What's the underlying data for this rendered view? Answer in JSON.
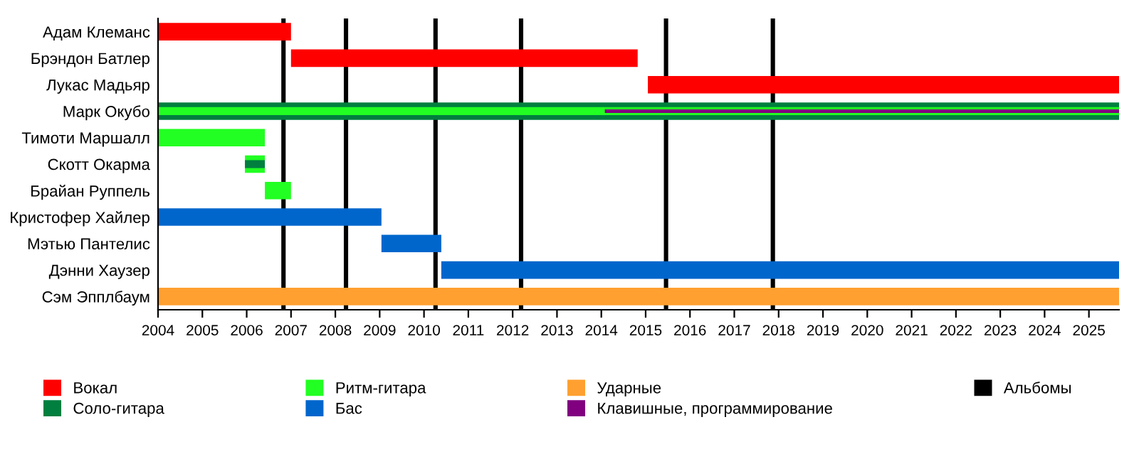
{
  "chart_data": {
    "type": "bar",
    "orientation": "horizontal",
    "categories": [
      "Адам Клеманс",
      "Брэндон Батлер",
      "Лукас Мадьяр",
      "Марк Окубо",
      "Тимоти Маршалл",
      "Скотт Окарма",
      "Брайан Руппель",
      "Кристофер Хайлер",
      "Мэтью Пантелис",
      "Дэнни Хаузер",
      "Сэм Эпплбаум"
    ],
    "series": [
      {
        "name": "Вокал",
        "color": "#ff0000",
        "base": [
          2004,
          2007.0,
          2015.05,
          null,
          null,
          null,
          null,
          null,
          null,
          null,
          null
        ],
        "values": [
          3.0,
          7.82,
          10.63,
          null,
          null,
          null,
          null,
          null,
          null,
          null,
          null
        ]
      },
      {
        "name": "Соло-гитара",
        "color": "#007f3f",
        "base": [
          null,
          null,
          null,
          2004,
          null,
          null,
          null,
          null,
          null,
          null,
          null
        ],
        "values": [
          null,
          null,
          null,
          21.68,
          null,
          null,
          null,
          null,
          null,
          null,
          null
        ]
      },
      {
        "name": "Ритм-гитара",
        "color": "#22ff22",
        "base": [
          null,
          null,
          null,
          2004,
          2004,
          2005.96,
          2006.41,
          null,
          null,
          null,
          null
        ],
        "values": [
          null,
          null,
          null,
          21.68,
          2.41,
          0.45,
          0.59,
          null,
          null,
          null,
          null
        ]
      },
      {
        "name": "Бас",
        "color": "#0066cc",
        "base": [
          null,
          null,
          null,
          null,
          null,
          null,
          null,
          2004,
          2009.04,
          2010.39,
          null
        ],
        "values": [
          null,
          null,
          null,
          null,
          null,
          null,
          null,
          5.04,
          1.35,
          15.29,
          null
        ]
      },
      {
        "name": "Ударные",
        "color": "#ffa030",
        "base": [
          null,
          null,
          null,
          null,
          null,
          null,
          null,
          null,
          null,
          null,
          2004
        ],
        "values": [
          null,
          null,
          null,
          null,
          null,
          null,
          null,
          null,
          null,
          null,
          21.68
        ]
      },
      {
        "name": "Клавишные, программирование",
        "color": "#800080",
        "base": [
          null,
          null,
          null,
          2014.08,
          null,
          null,
          null,
          null,
          null,
          null,
          null
        ],
        "values": [
          null,
          null,
          null,
          11.6,
          null,
          null,
          null,
          null,
          null,
          null,
          null
        ]
      },
      {
        "color": "#007f3f",
        "base": [
          null,
          null,
          null,
          null,
          null,
          2005.96,
          null,
          null,
          null,
          null,
          null
        ],
        "values": [
          null,
          null,
          null,
          null,
          null,
          0.45,
          null,
          null,
          null,
          null,
          null
        ]
      }
    ],
    "ref_lines": [
      {
        "axis": "x",
        "value": 2006.83,
        "label": "Альбомы",
        "color": "#000000"
      },
      {
        "axis": "x",
        "value": 2008.24,
        "color": "#000000"
      },
      {
        "axis": "x",
        "value": 2010.26,
        "color": "#000000"
      },
      {
        "axis": "x",
        "value": 2012.19,
        "color": "#000000"
      },
      {
        "axis": "x",
        "value": 2015.46,
        "color": "#000000"
      },
      {
        "axis": "x",
        "value": 2017.87,
        "color": "#000000"
      }
    ],
    "xlim": [
      2004,
      2025.68
    ],
    "xticks": [
      2004,
      2005,
      2006,
      2007,
      2008,
      2009,
      2010,
      2011,
      2012,
      2013,
      2014,
      2015,
      2016,
      2017,
      2018,
      2019,
      2020,
      2021,
      2022,
      2023,
      2024,
      2025
    ],
    "grid": false,
    "legend": "bottom"
  }
}
